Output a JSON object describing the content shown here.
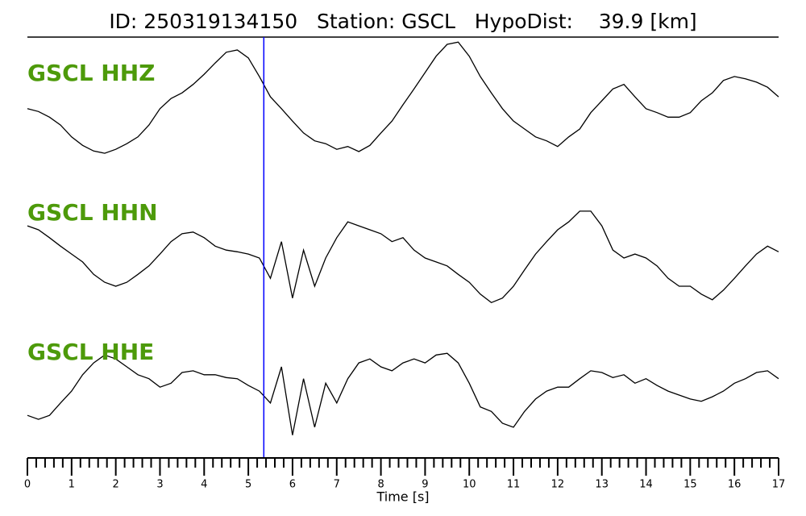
{
  "chart_data": {
    "type": "line",
    "title": "ID: 250319134150   Station: GSCL   HypoDist:    39.9 [km]",
    "x_label": "Time [s]",
    "xlim": [
      0,
      17
    ],
    "xticks": [
      0,
      1,
      2,
      3,
      4,
      5,
      6,
      7,
      8,
      9,
      10,
      11,
      12,
      13,
      14,
      15,
      16,
      17
    ],
    "xminor": 5,
    "ylim": [
      -1,
      1
    ],
    "pick": 5.35,
    "pick_color": "#0000ff",
    "label_color": "#4d9a0a",
    "x": [
      0,
      0.25,
      0.5,
      0.75,
      1,
      1.25,
      1.5,
      1.75,
      2,
      2.25,
      2.5,
      2.75,
      3,
      3.25,
      3.5,
      3.75,
      4,
      4.25,
      4.5,
      4.75,
      5,
      5.25,
      5.5,
      5.75,
      6,
      6.25,
      6.5,
      6.75,
      7,
      7.25,
      7.5,
      7.75,
      8,
      8.25,
      8.5,
      8.75,
      9,
      9.25,
      9.5,
      9.75,
      10,
      10.25,
      10.5,
      10.75,
      11,
      11.25,
      11.5,
      11.75,
      12,
      12.25,
      12.5,
      12.75,
      13,
      13.25,
      13.5,
      13.75,
      14,
      14.25,
      14.5,
      14.75,
      15,
      15.25,
      15.5,
      15.75,
      16,
      16.25,
      16.5,
      16.75,
      17
    ],
    "series": [
      {
        "name": "GSCL HHZ",
        "color": "#000000",
        "values": [
          -0.14,
          -0.19,
          -0.29,
          -0.43,
          -0.64,
          -0.79,
          -0.89,
          -0.93,
          -0.86,
          -0.76,
          -0.64,
          -0.43,
          -0.14,
          0.04,
          0.14,
          0.29,
          0.47,
          0.67,
          0.86,
          0.9,
          0.76,
          0.43,
          0.07,
          -0.14,
          -0.36,
          -0.57,
          -0.71,
          -0.76,
          -0.86,
          -0.81,
          -0.9,
          -0.79,
          -0.57,
          -0.36,
          -0.07,
          0.21,
          0.5,
          0.79,
          1.0,
          1.04,
          0.79,
          0.43,
          0.14,
          -0.14,
          -0.36,
          -0.5,
          -0.64,
          -0.71,
          -0.81,
          -0.64,
          -0.5,
          -0.21,
          0,
          0.21,
          0.29,
          0.07,
          -0.14,
          -0.21,
          -0.29,
          -0.29,
          -0.21,
          0,
          0.14,
          0.36,
          0.43,
          0.39,
          0.33,
          0.24,
          0.07
        ]
      },
      {
        "name": "GSCL HHN",
        "color": "#000000",
        "values": [
          0.57,
          0.5,
          0.36,
          0.21,
          0.07,
          -0.07,
          -0.29,
          -0.43,
          -0.5,
          -0.43,
          -0.29,
          -0.14,
          0.07,
          0.29,
          0.43,
          0.46,
          0.36,
          0.21,
          0.14,
          0.11,
          0.07,
          0,
          -0.36,
          0.29,
          -0.71,
          0.14,
          -0.5,
          0,
          0.36,
          0.64,
          0.57,
          0.5,
          0.43,
          0.29,
          0.36,
          0.14,
          0,
          -0.07,
          -0.14,
          -0.29,
          -0.43,
          -0.64,
          -0.79,
          -0.71,
          -0.5,
          -0.21,
          0.07,
          0.29,
          0.5,
          0.64,
          0.83,
          0.83,
          0.57,
          0.14,
          0,
          0.07,
          0,
          -0.14,
          -0.36,
          -0.5,
          -0.5,
          -0.64,
          -0.74,
          -0.57,
          -0.36,
          -0.14,
          0.07,
          0.21,
          0.11
        ]
      },
      {
        "name": "GSCL HHE",
        "color": "#000000",
        "values": [
          -0.36,
          -0.43,
          -0.36,
          -0.14,
          0.07,
          0.36,
          0.57,
          0.71,
          0.64,
          0.5,
          0.36,
          0.29,
          0.14,
          0.21,
          0.4,
          0.43,
          0.36,
          0.36,
          0.31,
          0.29,
          0.17,
          0.07,
          -0.14,
          0.5,
          -0.71,
          0.29,
          -0.57,
          0.21,
          -0.14,
          0.29,
          0.57,
          0.64,
          0.5,
          0.43,
          0.57,
          0.64,
          0.57,
          0.71,
          0.74,
          0.57,
          0.21,
          -0.21,
          -0.29,
          -0.5,
          -0.57,
          -0.29,
          -0.07,
          0.07,
          0.14,
          0.14,
          0.29,
          0.43,
          0.4,
          0.31,
          0.36,
          0.21,
          0.29,
          0.17,
          0.07,
          0,
          -0.07,
          -0.11,
          -0.03,
          0.07,
          0.21,
          0.29,
          0.4,
          0.43,
          0.29
        ]
      }
    ]
  }
}
